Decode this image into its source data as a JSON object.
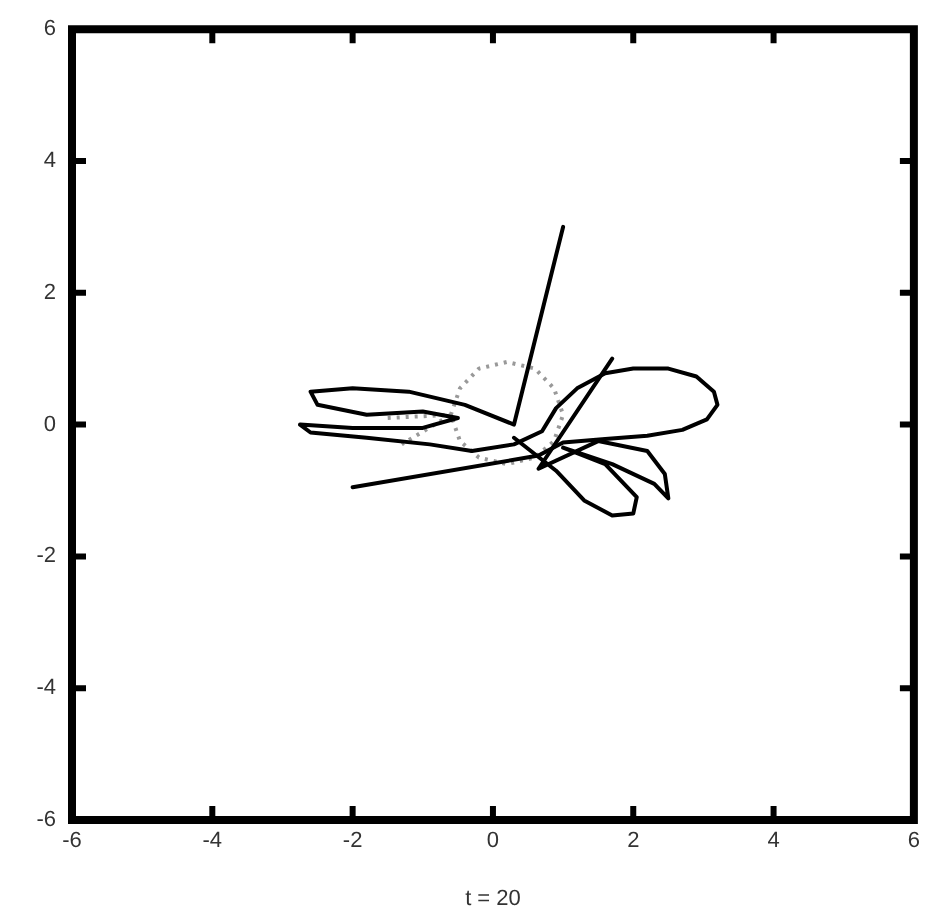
{
  "chart_data": {
    "type": "line",
    "xlabel": "t = 20",
    "series": [
      {
        "color": "#000000",
        "line_style": "solid",
        "x": [
          1.0,
          0.3,
          -0.4,
          -1.2,
          -2.0,
          -2.6,
          -2.5,
          -1.8,
          -1.0,
          -0.5,
          -1.0,
          -2.0,
          -2.75,
          -2.6,
          -1.8,
          -0.9,
          -0.3,
          0.3,
          0.7,
          0.9,
          1.2,
          1.6,
          2.0,
          2.5,
          2.9,
          3.15,
          3.2,
          3.05,
          2.7,
          2.2,
          1.6,
          1.0,
          0.65,
          -2.0
        ],
        "values": [
          3.0,
          0.0,
          0.3,
          0.5,
          0.55,
          0.5,
          0.3,
          0.15,
          0.2,
          0.1,
          -0.05,
          -0.05,
          0.0,
          -0.12,
          -0.2,
          -0.3,
          -0.4,
          -0.3,
          -0.1,
          0.25,
          0.55,
          0.78,
          0.85,
          0.85,
          0.73,
          0.5,
          0.3,
          0.08,
          -0.08,
          -0.17,
          -0.22,
          -0.27,
          -0.47,
          -0.95
        ]
      },
      {
        "color": "#000000",
        "line_style": "solid",
        "x": [
          0.3,
          0.9,
          1.3,
          1.7,
          2.0,
          2.05,
          1.6,
          1.0,
          1.7,
          2.3,
          2.5,
          2.45,
          2.2,
          1.5,
          0.65,
          1.7
        ],
        "values": [
          -0.2,
          -0.7,
          -1.15,
          -1.38,
          -1.35,
          -1.1,
          -0.6,
          -0.35,
          -0.6,
          -0.9,
          -1.12,
          -0.75,
          -0.4,
          -0.25,
          -0.67,
          1.0
        ]
      },
      {
        "color": "#999999",
        "line_style": "dotted",
        "x": [
          -1.5,
          -0.6,
          -0.47,
          -0.2,
          0.2,
          0.6,
          0.87,
          1.0,
          0.87,
          0.6,
          0.2,
          -0.2,
          -0.47,
          -0.6,
          -1.3
        ],
        "values": [
          0.1,
          0.15,
          0.55,
          0.85,
          0.95,
          0.85,
          0.55,
          0.15,
          -0.25,
          -0.5,
          -0.6,
          -0.5,
          -0.25,
          0.15,
          -0.3
        ]
      }
    ],
    "xlim": [
      -6,
      6
    ],
    "ylim": [
      -6,
      6
    ],
    "xticks": [
      -6,
      -4,
      -2,
      0,
      2,
      4,
      6
    ],
    "yticks": [
      -6,
      -4,
      -2,
      0,
      2,
      4,
      6
    ],
    "grid": false,
    "legend": false,
    "marker": "none"
  }
}
